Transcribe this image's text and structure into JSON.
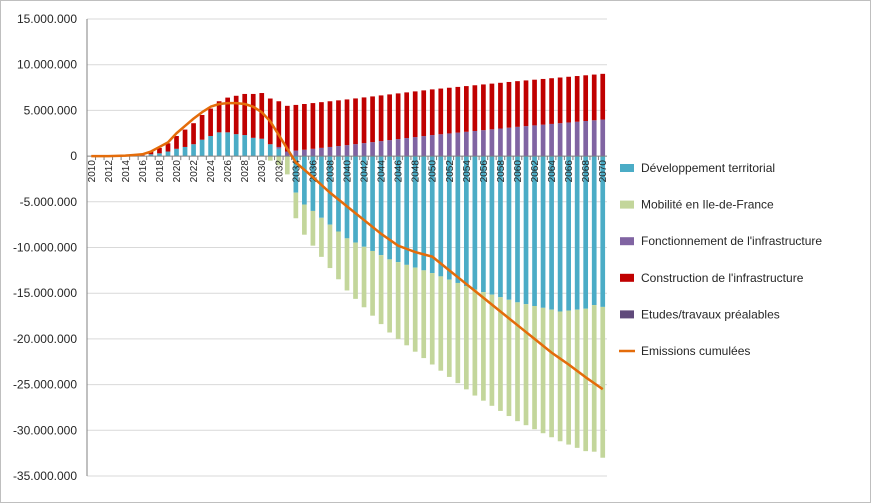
{
  "chart_data": {
    "type": "bar",
    "stacked": true,
    "title": "",
    "xlabel": "",
    "ylabel": "",
    "ylim": [
      -35000000,
      15000000
    ],
    "yticks": [
      15000000,
      10000000,
      5000000,
      0,
      -5000000,
      -10000000,
      -15000000,
      -20000000,
      -25000000,
      -30000000,
      -35000000
    ],
    "ytick_labels": [
      "15.000.000",
      "10.000.000",
      "5.000.000",
      "0",
      "-5.000.000",
      "-10.000.000",
      "-15.000.000",
      "-20.000.000",
      "-25.000.000",
      "-30.000.000",
      "-35.000.000"
    ],
    "xtick_labels": [
      "2010",
      "2012",
      "2014",
      "2016",
      "2018",
      "2020",
      "2022",
      "2024",
      "2026",
      "2028",
      "2030",
      "2032",
      "2034",
      "2036",
      "2038",
      "2040",
      "2042",
      "2044",
      "2046",
      "2048",
      "2050",
      "2052",
      "2054",
      "2056",
      "2058",
      "2060",
      "2062",
      "2064",
      "2066",
      "2068",
      "2070"
    ],
    "x_start": 2010,
    "x_end": 2070,
    "legend_position": "right",
    "series": [
      {
        "name": "Développement territorial",
        "color": "#4bacc6",
        "kind": "bar",
        "anchors": [
          [
            2010,
            0
          ],
          [
            2016,
            0
          ],
          [
            2017,
            200000
          ],
          [
            2018,
            300000
          ],
          [
            2019,
            500000
          ],
          [
            2020,
            800000
          ],
          [
            2021,
            1000000
          ],
          [
            2022,
            1300000
          ],
          [
            2023,
            1800000
          ],
          [
            2024,
            2200000
          ],
          [
            2025,
            2600000
          ],
          [
            2026,
            2600000
          ],
          [
            2027,
            2400000
          ],
          [
            2028,
            2300000
          ],
          [
            2029,
            2000000
          ],
          [
            2030,
            1900000
          ],
          [
            2031,
            1300000
          ],
          [
            2032,
            800000
          ],
          [
            2033,
            0
          ],
          [
            2034,
            -4000000
          ],
          [
            2035,
            -5300000
          ],
          [
            2036,
            -6000000
          ],
          [
            2040,
            -9000000
          ],
          [
            2045,
            -11300000
          ],
          [
            2050,
            -12800000
          ],
          [
            2055,
            -14600000
          ],
          [
            2060,
            -16000000
          ],
          [
            2065,
            -17000000
          ],
          [
            2068,
            -16700000
          ],
          [
            2069,
            -16300000
          ],
          [
            2070,
            -16500000
          ]
        ]
      },
      {
        "name": "Mobilité en Ile-de-France",
        "color": "#c3d69b",
        "kind": "bar",
        "anchors": [
          [
            2010,
            0
          ],
          [
            2030,
            0
          ],
          [
            2031,
            -500000
          ],
          [
            2032,
            -1000000
          ],
          [
            2033,
            -2000000
          ],
          [
            2034,
            -2800000
          ],
          [
            2035,
            -3300000
          ],
          [
            2036,
            -3800000
          ],
          [
            2040,
            -5700000
          ],
          [
            2045,
            -8000000
          ],
          [
            2050,
            -10000000
          ],
          [
            2055,
            -11600000
          ],
          [
            2060,
            -13000000
          ],
          [
            2065,
            -14200000
          ],
          [
            2070,
            -16500000
          ]
        ]
      },
      {
        "name": "Fonctionnement de l'infrastructure",
        "color": "#8064a2",
        "kind": "bar",
        "anchors": [
          [
            2010,
            0
          ],
          [
            2031,
            0
          ],
          [
            2032,
            200000
          ],
          [
            2033,
            500000
          ],
          [
            2040,
            1200000
          ],
          [
            2050,
            2300000
          ],
          [
            2060,
            3200000
          ],
          [
            2070,
            4000000
          ]
        ]
      },
      {
        "name": "Construction de l'infrastructure",
        "color": "#c00000",
        "kind": "bar",
        "anchors": [
          [
            2010,
            0
          ],
          [
            2015,
            0
          ],
          [
            2016,
            100000
          ],
          [
            2017,
            300000
          ],
          [
            2018,
            600000
          ],
          [
            2019,
            900000
          ],
          [
            2020,
            1400000
          ],
          [
            2021,
            1900000
          ],
          [
            2022,
            2300000
          ],
          [
            2023,
            2700000
          ],
          [
            2024,
            3000000
          ],
          [
            2025,
            3400000
          ],
          [
            2026,
            3800000
          ],
          [
            2027,
            4200000
          ],
          [
            2028,
            4500000
          ],
          [
            2029,
            4800000
          ],
          [
            2030,
            5000000
          ],
          [
            2070,
            5000000
          ]
        ]
      },
      {
        "name": "Etudes/travaux préalables",
        "color": "#604a7b",
        "kind": "bar",
        "anchors": [
          [
            2010,
            0
          ],
          [
            2070,
            0
          ]
        ]
      },
      {
        "name": "Emissions cumulées",
        "color": "#e46c0a",
        "kind": "line",
        "anchors": [
          [
            2010,
            0
          ],
          [
            2012,
            0
          ],
          [
            2014,
            50000
          ],
          [
            2016,
            200000
          ],
          [
            2017,
            500000
          ],
          [
            2018,
            1000000
          ],
          [
            2019,
            1500000
          ],
          [
            2020,
            2500000
          ],
          [
            2021,
            3300000
          ],
          [
            2022,
            4100000
          ],
          [
            2023,
            4800000
          ],
          [
            2024,
            5400000
          ],
          [
            2025,
            5700000
          ],
          [
            2026,
            5800000
          ],
          [
            2027,
            5800000
          ],
          [
            2028,
            5700000
          ],
          [
            2029,
            5400000
          ],
          [
            2030,
            4800000
          ],
          [
            2031,
            3800000
          ],
          [
            2032,
            2300000
          ],
          [
            2033,
            800000
          ],
          [
            2034,
            -700000
          ],
          [
            2036,
            -2300000
          ],
          [
            2038,
            -4000000
          ],
          [
            2040,
            -5500000
          ],
          [
            2042,
            -7000000
          ],
          [
            2044,
            -8500000
          ],
          [
            2046,
            -9800000
          ],
          [
            2048,
            -10500000
          ],
          [
            2050,
            -11000000
          ],
          [
            2052,
            -12500000
          ],
          [
            2054,
            -14000000
          ],
          [
            2056,
            -15500000
          ],
          [
            2058,
            -17000000
          ],
          [
            2060,
            -18500000
          ],
          [
            2062,
            -20000000
          ],
          [
            2064,
            -21500000
          ],
          [
            2066,
            -22800000
          ],
          [
            2068,
            -24200000
          ],
          [
            2070,
            -25500000
          ]
        ]
      }
    ]
  }
}
